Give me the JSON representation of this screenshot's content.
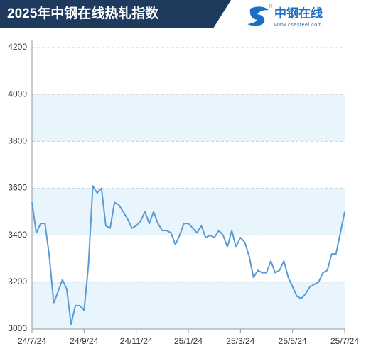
{
  "logo": {
    "mark": "®",
    "text": "中钢在线",
    "url": "www.csesteel.com"
  },
  "chart_data": {
    "type": "line",
    "title": "2025年中钢在线热轧指数",
    "categories": [
      "24/7/24",
      null,
      null,
      null,
      null,
      null,
      null,
      null,
      null,
      null,
      null,
      null,
      "24/9/24",
      null,
      null,
      null,
      null,
      null,
      null,
      null,
      null,
      null,
      null,
      null,
      "24/11/24",
      null,
      null,
      null,
      null,
      null,
      null,
      null,
      null,
      null,
      null,
      null,
      "25/1/24",
      null,
      null,
      null,
      null,
      null,
      null,
      null,
      null,
      null,
      null,
      null,
      "25/3/24",
      null,
      null,
      null,
      null,
      null,
      null,
      null,
      null,
      null,
      null,
      null,
      "25/5/24",
      null,
      null,
      null,
      null,
      null,
      null,
      null,
      null,
      null,
      null,
      null,
      "25/7/24"
    ],
    "values": [
      3540,
      3410,
      3450,
      3450,
      3310,
      3110,
      3160,
      3210,
      3170,
      3020,
      3100,
      3100,
      3080,
      3270,
      3610,
      3580,
      3600,
      3440,
      3430,
      3540,
      3530,
      3500,
      3470,
      3430,
      3440,
      3460,
      3500,
      3450,
      3500,
      3450,
      3420,
      3420,
      3410,
      3360,
      3400,
      3450,
      3450,
      3430,
      3410,
      3440,
      3390,
      3400,
      3390,
      3420,
      3400,
      3350,
      3420,
      3350,
      3390,
      3370,
      3310,
      3220,
      3250,
      3240,
      3240,
      3290,
      3240,
      3250,
      3290,
      3220,
      3180,
      3140,
      3130,
      3150,
      3180,
      3190,
      3200,
      3240,
      3250,
      3320,
      3320,
      3410,
      3500
    ],
    "color": "#5b9bd5",
    "ylim": [
      3000,
      4200
    ],
    "yticks": [
      3000,
      3200,
      3400,
      3600,
      3800,
      4000,
      4200
    ],
    "grid": true
  }
}
